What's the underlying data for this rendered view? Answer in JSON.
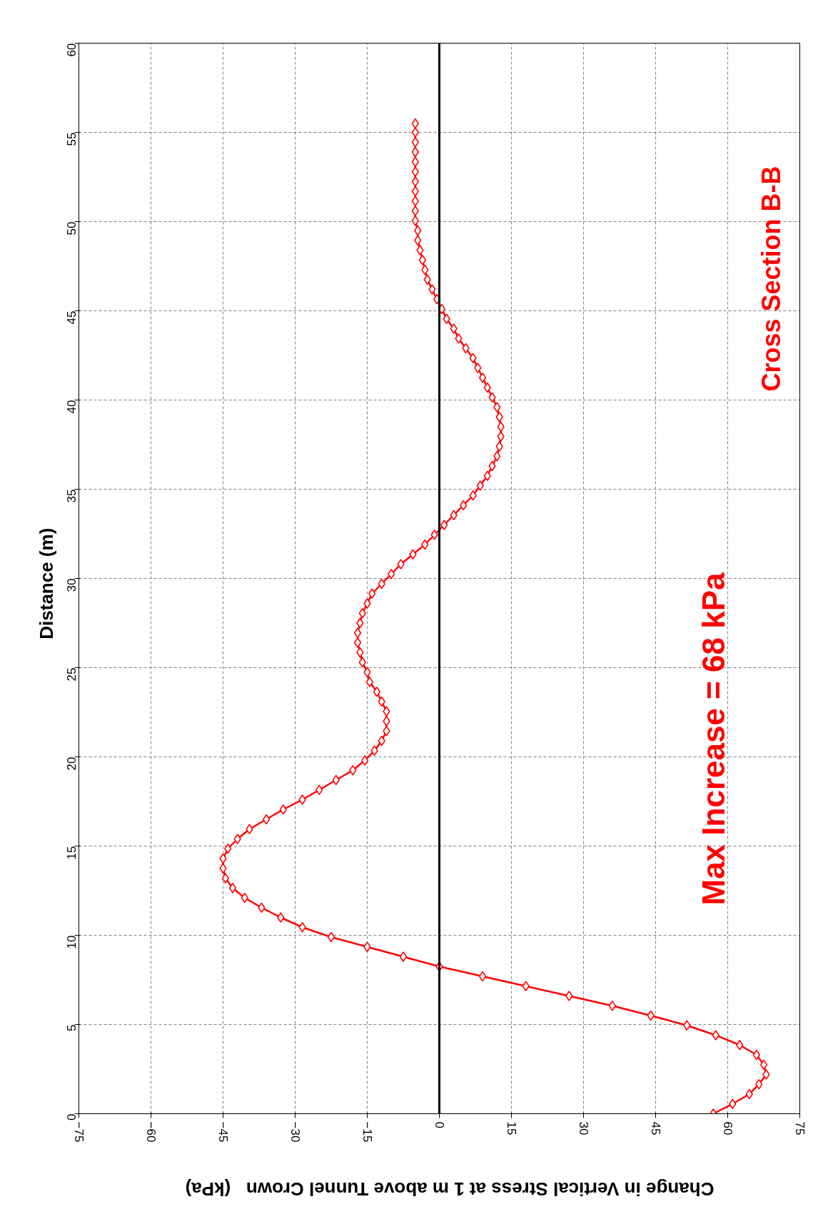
{
  "chart_data": {
    "type": "line",
    "orientation": "horizontal",
    "xlabel": "Change in Vertical Stress at 1 m above Tunnel Crown   (kPa)",
    "ylabel": "Distance   (m)",
    "annotations": [
      "Max Increase = 68 kPa",
      "Cross Section B-B"
    ],
    "x": [
      0,
      0.55,
      1.1,
      1.65,
      2.2,
      2.75,
      3.3,
      3.85,
      4.4,
      4.95,
      5.5,
      6.05,
      6.6,
      7.15,
      7.7,
      8.25,
      8.8,
      9.35,
      9.9,
      10.45,
      11,
      11.55,
      12.1,
      12.65,
      13.2,
      13.75,
      14.3,
      14.85,
      15.4,
      15.95,
      16.5,
      17.05,
      17.6,
      18.15,
      18.7,
      19.25,
      19.8,
      20.35,
      20.9,
      21.45,
      22,
      22.55,
      23.1,
      23.65,
      24.2,
      24.75,
      25.3,
      25.85,
      26.4,
      26.95,
      27.5,
      28.05,
      28.6,
      29.15,
      29.7,
      30.25,
      30.8,
      31.35,
      31.9,
      32.45,
      33,
      33.55,
      34.1,
      34.65,
      35.2,
      35.75,
      36.3,
      36.85,
      37.4,
      37.95,
      38.5,
      39.05,
      39.6,
      40.15,
      40.7,
      41.25,
      41.8,
      42.35,
      42.9,
      43.45,
      44,
      44.55,
      45.1,
      45.65,
      46.2,
      46.75,
      47.3,
      47.85,
      48.4,
      48.95,
      49.5,
      50.05,
      50.6,
      51.15,
      51.7,
      52.25,
      52.8,
      53.35,
      53.9,
      54.45,
      55,
      55.5
    ],
    "series": [
      {
        "color": "#ff0000",
        "values": [
          57,
          61,
          64.5,
          66.5,
          68,
          67.5,
          66,
          62.5,
          57.5,
          51.5,
          44,
          36,
          27,
          18,
          9,
          0,
          -7.5,
          -15,
          -22.5,
          -28.5,
          -33,
          -37,
          -40.5,
          -43,
          -44.5,
          -45,
          -45,
          -44,
          -42,
          -39.5,
          -36,
          -32.5,
          -28.5,
          -25,
          -21.5,
          -18,
          -15.5,
          -13.5,
          -12,
          -11,
          -11,
          -11,
          -12,
          -13,
          -14.5,
          -15,
          -16,
          -16.5,
          -17,
          -17,
          -16.5,
          -16,
          -15,
          -14,
          -12,
          -10,
          -8,
          -5.5,
          -3,
          -1,
          1,
          3,
          5,
          7,
          8.5,
          10,
          11,
          12,
          12.5,
          12.8,
          12.8,
          12.5,
          12,
          11,
          10,
          9,
          8,
          7,
          5.5,
          4,
          3,
          1.5,
          0.5,
          -0.5,
          -1.5,
          -2.5,
          -3,
          -3.5,
          -4,
          -4.5,
          -4.5,
          -5,
          -5,
          -5,
          -5,
          -5,
          -5,
          -5,
          -5,
          -5,
          -5,
          -5
        ]
      }
    ],
    "xlim": [
      -75,
      75
    ],
    "xticks": [
      -75,
      -60,
      -45,
      -30,
      -15,
      0,
      15,
      30,
      45,
      60,
      75
    ],
    "ylim": [
      0,
      60
    ],
    "yticks": [
      0,
      5,
      10,
      15,
      20,
      25,
      30,
      35,
      40,
      45,
      50,
      55,
      60
    ],
    "ref_lines": [
      {
        "axis": "x",
        "value": 0,
        "color": "#000000"
      }
    ],
    "grid": true,
    "marker": "diamond",
    "line_style": "solid"
  }
}
